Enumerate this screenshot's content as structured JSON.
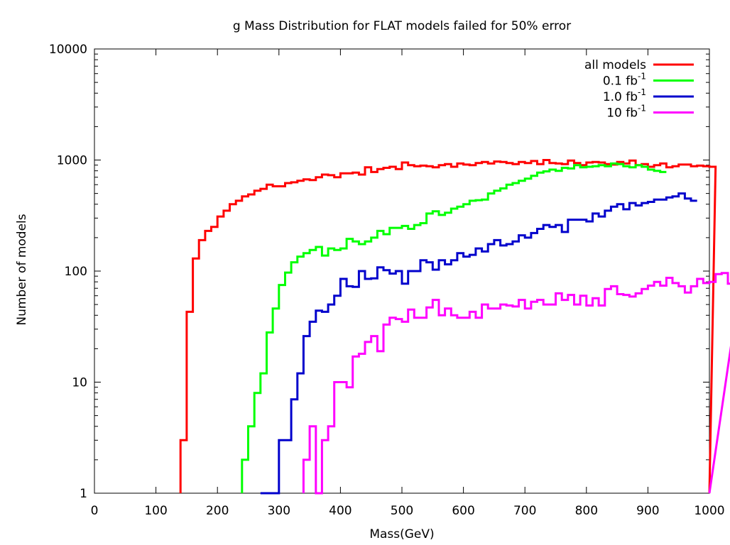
{
  "chart_data": {
    "type": "line",
    "step": true,
    "title": "g Mass Distribution for FLAT models failed for 50% error",
    "xlabel": "Mass(GeV)",
    "ylabel": "Number of models",
    "xlim": [
      0,
      1000
    ],
    "ylim": [
      1,
      10000
    ],
    "yscale": "log",
    "grid": false,
    "legend_position": "top-right",
    "x_ticks": [
      "0",
      "100",
      "200",
      "300",
      "400",
      "500",
      "600",
      "700",
      "800",
      "900",
      "1000"
    ],
    "y_ticks": [
      "1",
      "10",
      "100",
      "1000",
      "10000"
    ],
    "bin_width": 10,
    "series": [
      {
        "name": "all models",
        "name_sup": "",
        "color": "#ff0000",
        "x_start": 140,
        "values": [
          3,
          43,
          130,
          190,
          230,
          250,
          310,
          350,
          400,
          430,
          470,
          490,
          530,
          550,
          600,
          580,
          580,
          620,
          630,
          650,
          670,
          660,
          700,
          740,
          730,
          700,
          760,
          760,
          770,
          740,
          860,
          780,
          830,
          850,
          870,
          830,
          950,
          900,
          880,
          890,
          880,
          860,
          900,
          920,
          870,
          930,
          910,
          900,
          940,
          960,
          930,
          970,
          960,
          940,
          920,
          960,
          940,
          980,
          920,
          1000,
          940,
          930,
          920,
          990,
          940,
          900,
          950,
          960,
          950,
          920,
          910,
          960,
          930,
          990,
          900,
          920,
          870,
          900,
          930,
          860,
          880,
          910,
          910,
          880,
          890,
          880,
          870
        ]
      },
      {
        "name": "0.1 fb",
        "name_sup": "-1",
        "color": "#00ff00",
        "x_start": 240,
        "values": [
          2,
          4,
          8,
          12,
          28,
          46,
          75,
          97,
          120,
          135,
          145,
          155,
          165,
          138,
          160,
          155,
          160,
          195,
          185,
          175,
          185,
          200,
          230,
          215,
          245,
          245,
          255,
          240,
          260,
          270,
          330,
          345,
          320,
          335,
          365,
          380,
          400,
          430,
          435,
          440,
          500,
          530,
          555,
          600,
          620,
          650,
          680,
          720,
          770,
          790,
          820,
          800,
          850,
          840,
          900,
          860,
          870,
          880,
          900,
          880,
          930,
          920,
          880,
          860,
          900,
          870,
          820,
          800,
          780
        ]
      },
      {
        "name": "1.0 fb",
        "name_sup": "-1",
        "color": "#0000cc",
        "x_start": 270,
        "values": [
          1,
          1,
          1,
          3,
          3,
          7,
          12,
          26,
          35,
          44,
          43,
          50,
          60,
          85,
          73,
          72,
          100,
          85,
          86,
          108,
          102,
          95,
          100,
          77,
          100,
          100,
          125,
          120,
          103,
          125,
          115,
          125,
          145,
          135,
          140,
          160,
          150,
          175,
          190,
          170,
          175,
          185,
          210,
          200,
          220,
          240,
          260,
          250,
          260,
          225,
          290,
          290,
          290,
          280,
          330,
          310,
          350,
          380,
          400,
          360,
          410,
          390,
          410,
          420,
          440,
          440,
          460,
          470,
          500,
          450,
          430
        ]
      },
      {
        "name": "10 fb",
        "name_sup": "-1",
        "color": "#ff00ff",
        "x_start": 340,
        "values": [
          2,
          4,
          1,
          3,
          4,
          10,
          10,
          9,
          17,
          18,
          23,
          26,
          19,
          33,
          38,
          37,
          35,
          45,
          38,
          38,
          47,
          55,
          40,
          46,
          40,
          38,
          38,
          43,
          38,
          50,
          46,
          46,
          50,
          49,
          48,
          55,
          46,
          53,
          55,
          50,
          50,
          63,
          55,
          61,
          50,
          60,
          49,
          57,
          49,
          69,
          73,
          62,
          61,
          59,
          63,
          69,
          74,
          80,
          74,
          87,
          78,
          73,
          64,
          73,
          85,
          78,
          80,
          94,
          96,
          77,
          77
        ]
      }
    ]
  }
}
